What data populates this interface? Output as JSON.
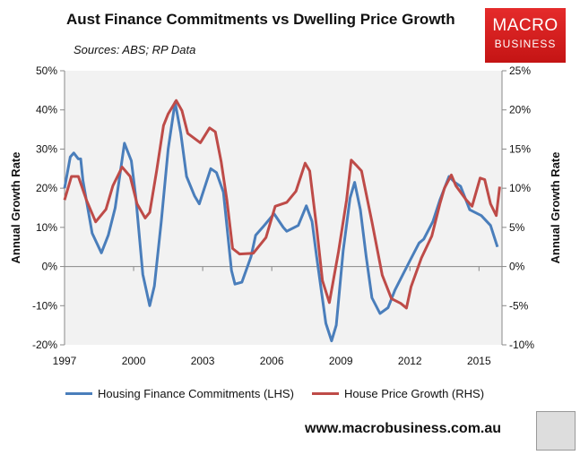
{
  "chart_data": {
    "type": "line",
    "title": "Aust Finance Commitments vs Dwelling Price Growth",
    "subtitle": "Sources: ABS; RP Data",
    "ylabel": "Annual Growth Rate",
    "y2label": "Annual Growth Rate",
    "xlim": [
      1997,
      2016
    ],
    "ylim": [
      -20,
      50
    ],
    "y2lim": [
      -10,
      25
    ],
    "xticks": [
      "1997",
      "2000",
      "2003",
      "2006",
      "2009",
      "2012",
      "2015"
    ],
    "yticks": [
      "-20%",
      "-10%",
      "0%",
      "10%",
      "20%",
      "30%",
      "40%",
      "50%"
    ],
    "y2ticks": [
      "-10%",
      "-5%",
      "0%",
      "5%",
      "10%",
      "15%",
      "20%",
      "25%"
    ],
    "grid": false,
    "legend": "bottom",
    "series": [
      {
        "name": "Housing Finance Commitments (LHS)",
        "axis": "left",
        "color": "#4a7ebb",
        "x": [
          1997.0,
          1997.25,
          1997.4,
          1997.6,
          1997.7,
          1997.8,
          1998.2,
          1998.6,
          1998.9,
          1999.2,
          1999.6,
          1999.9,
          2000.1,
          2000.4,
          2000.7,
          2000.9,
          2001.2,
          2001.5,
          2001.8,
          2002.05,
          2002.3,
          2002.65,
          2002.85,
          2003.35,
          2003.6,
          2003.9,
          2004.25,
          2004.4,
          2004.7,
          2005.1,
          2005.3,
          2005.6,
          2006.1,
          2006.5,
          2006.65,
          2007.15,
          2007.5,
          2007.75,
          2007.95,
          2008.35,
          2008.6,
          2008.8,
          2009.1,
          2009.4,
          2009.6,
          2009.85,
          2010.1,
          2010.35,
          2010.7,
          2011.05,
          2011.35,
          2012.0,
          2012.4,
          2012.6,
          2013.0,
          2013.3,
          2013.7,
          2013.95,
          2014.2,
          2014.6,
          2015.1,
          2015.5,
          2015.8
        ],
        "y": [
          20,
          28,
          29,
          27.5,
          27.5,
          22,
          8.5,
          3.5,
          8,
          15,
          31.5,
          27,
          17.5,
          -2,
          -10,
          -5,
          11.5,
          30,
          42,
          34,
          23,
          18,
          16,
          25,
          24,
          19,
          -1,
          -4.5,
          -4,
          2.5,
          8,
          10,
          13.5,
          10,
          9,
          10.5,
          15.5,
          11.5,
          2.5,
          -14.5,
          -19,
          -15,
          4,
          17.5,
          21.5,
          14.5,
          2.5,
          -8,
          -12,
          -10.5,
          -6,
          1.5,
          6,
          7,
          11.5,
          17,
          23,
          21.5,
          20.5,
          14.5,
          13,
          10.5,
          5
        ]
      },
      {
        "name": "House Price Growth (RHS)",
        "axis": "right",
        "color": "#be4b48",
        "x": [
          1997.0,
          1997.3,
          1997.6,
          1997.95,
          1998.35,
          1998.8,
          1999.1,
          1999.5,
          1999.85,
          2000.15,
          2000.5,
          2000.7,
          2001.0,
          2001.3,
          2001.5,
          2001.85,
          2002.1,
          2002.35,
          2002.9,
          2003.3,
          2003.55,
          2003.8,
          2004.05,
          2004.3,
          2004.6,
          2005.2,
          2005.75,
          2006.15,
          2006.65,
          2007.05,
          2007.45,
          2007.65,
          2007.95,
          2008.2,
          2008.5,
          2008.9,
          2009.25,
          2009.45,
          2009.65,
          2009.9,
          2010.35,
          2010.8,
          2011.2,
          2011.6,
          2011.85,
          2012.05,
          2012.5,
          2012.95,
          2013.3,
          2013.5,
          2013.8,
          2014.0,
          2014.45,
          2014.7,
          2015.05,
          2015.25,
          2015.5,
          2015.75,
          2015.9
        ],
        "y": [
          8.5,
          11.5,
          11.5,
          8.5,
          5.7,
          7.3,
          10.3,
          12.7,
          11.5,
          8,
          6.2,
          6.9,
          12.2,
          18,
          19.5,
          21.2,
          19.9,
          17,
          15.8,
          17.7,
          17.2,
          13.4,
          8.5,
          2.3,
          1.6,
          1.7,
          3.7,
          7.7,
          8.2,
          9.6,
          13.2,
          12.2,
          5,
          -1.8,
          -4.6,
          1.9,
          8.5,
          13.6,
          13,
          12.2,
          5.7,
          -1.1,
          -4.1,
          -4.7,
          -5.3,
          -2.6,
          1.1,
          3.9,
          8,
          10,
          11.7,
          10.3,
          8.5,
          7.7,
          11.3,
          11.1,
          8,
          6.5,
          10.2
        ]
      }
    ]
  },
  "logo": {
    "line1": "MACRO",
    "line2": "BUSINESS"
  },
  "footer": {
    "url": "www.macrobusiness.com.au"
  }
}
